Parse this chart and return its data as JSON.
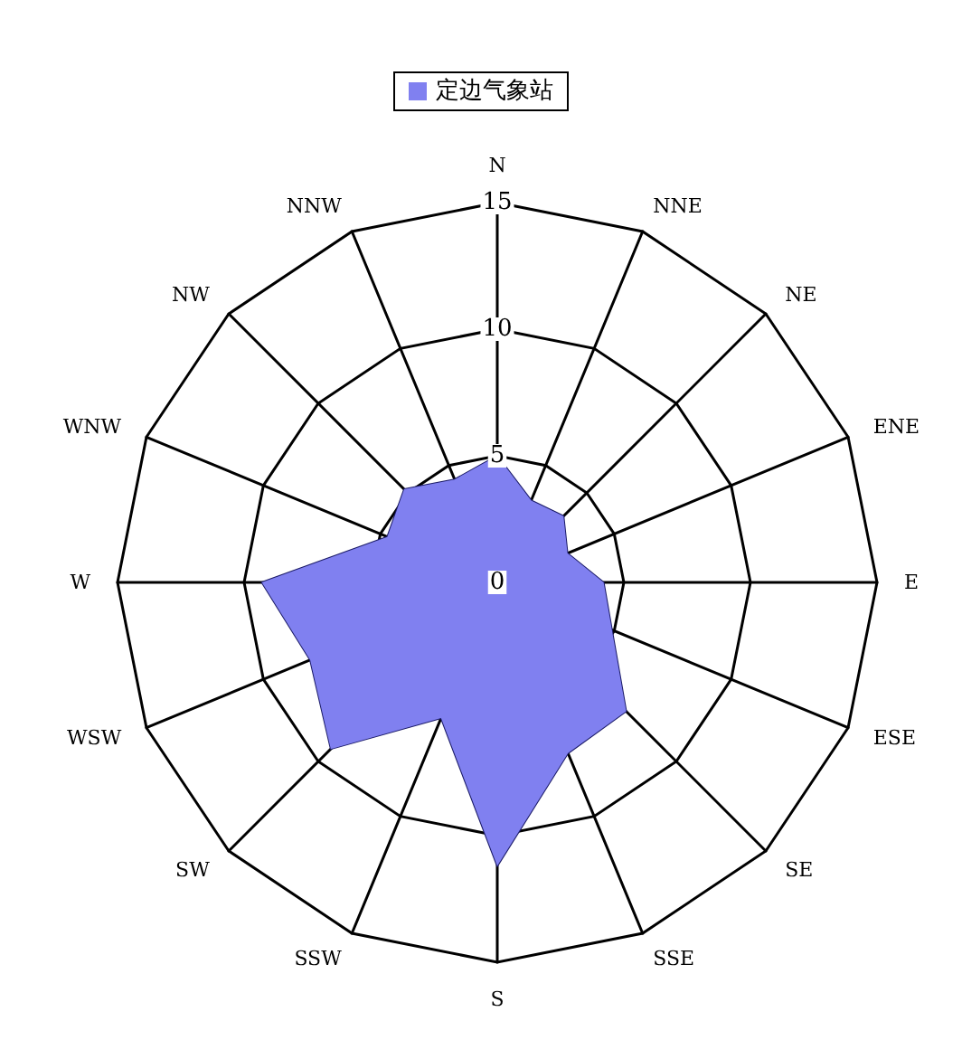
{
  "chart_data": {
    "type": "radar",
    "categories": [
      "N",
      "NNE",
      "NE",
      "ENE",
      "E",
      "ESE",
      "SE",
      "SSE",
      "S",
      "SSW",
      "SW",
      "WSW",
      "W",
      "WNW",
      "NW",
      "NNW"
    ],
    "series": [
      {
        "name": "定边气象站",
        "color": "#8080f0",
        "values": [
          5.0,
          3.5,
          3.7,
          3.0,
          4.2,
          4.9,
          7.2,
          7.3,
          11.2,
          5.8,
          9.3,
          8.0,
          9.3,
          4.7,
          5.2,
          4.4
        ]
      }
    ],
    "ylim": [
      0,
      15
    ],
    "yticks": [
      0,
      5,
      10,
      15
    ],
    "legend": "top"
  }
}
